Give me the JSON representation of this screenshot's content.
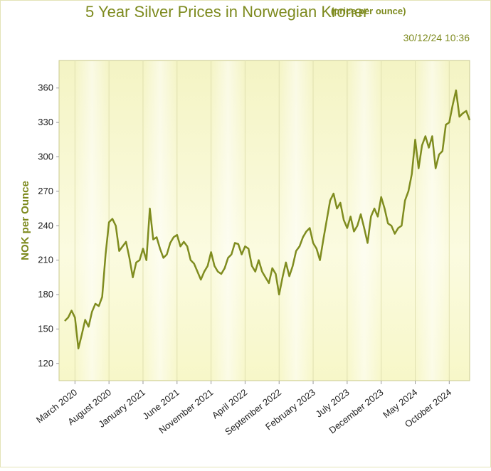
{
  "chart_data": {
    "type": "line",
    "title": "5 Year Silver Prices in Norwegian Kroner",
    "subtitle": "(price per ounce)",
    "timestamp": "30/12/24 10:36",
    "y_label": "NOK per Ounce",
    "categories": [
      null,
      null,
      null,
      "March 2020",
      null,
      null,
      null,
      null,
      null,
      null,
      null,
      null,
      null,
      "August 2020",
      null,
      null,
      null,
      null,
      null,
      null,
      null,
      null,
      null,
      "January 2021",
      null,
      null,
      null,
      null,
      null,
      null,
      null,
      null,
      null,
      "June 2021",
      null,
      null,
      null,
      null,
      null,
      null,
      null,
      null,
      null,
      "November 2021",
      null,
      null,
      null,
      null,
      null,
      null,
      null,
      null,
      null,
      "April 2022",
      null,
      null,
      null,
      null,
      null,
      null,
      null,
      null,
      null,
      "September 2022",
      null,
      null,
      null,
      null,
      null,
      null,
      null,
      null,
      null,
      "February 2023",
      null,
      null,
      null,
      null,
      null,
      null,
      null,
      null,
      null,
      "July 2023",
      null,
      null,
      null,
      null,
      null,
      null,
      null,
      null,
      null,
      "December 2023",
      null,
      null,
      null,
      null,
      null,
      null,
      null,
      null,
      null,
      "May 2024",
      null,
      null,
      null,
      null,
      null,
      null,
      null,
      null,
      null,
      "October 2024",
      null,
      null,
      null,
      null,
      null,
      null
    ],
    "series": [
      {
        "name": "Silver",
        "color": "#7f8c1f",
        "values": [
          157,
          160,
          166,
          160,
          133,
          145,
          158,
          152,
          165,
          172,
          170,
          178,
          215,
          243,
          246,
          240,
          218,
          222,
          226,
          212,
          195,
          208,
          210,
          220,
          210,
          255,
          228,
          230,
          220,
          212,
          215,
          225,
          230,
          232,
          222,
          226,
          222,
          210,
          207,
          200,
          193,
          200,
          205,
          217,
          205,
          200,
          198,
          203,
          212,
          215,
          225,
          224,
          215,
          222,
          220,
          205,
          200,
          210,
          200,
          195,
          190,
          203,
          198,
          180,
          195,
          208,
          196,
          205,
          218,
          222,
          230,
          235,
          238,
          225,
          220,
          210,
          228,
          245,
          262,
          268,
          255,
          260,
          245,
          238,
          248,
          235,
          240,
          250,
          238,
          225,
          248,
          255,
          248,
          265,
          255,
          242,
          240,
          233,
          238,
          240,
          262,
          270,
          285,
          315,
          290,
          310,
          318,
          308,
          318,
          290,
          302,
          305,
          328,
          330,
          345,
          358,
          335,
          338,
          340,
          332
        ]
      }
    ],
    "ylim": [
      105,
      384
    ],
    "yticks": [
      120,
      150,
      180,
      210,
      240,
      270,
      300,
      330,
      360
    ],
    "grid": true
  }
}
